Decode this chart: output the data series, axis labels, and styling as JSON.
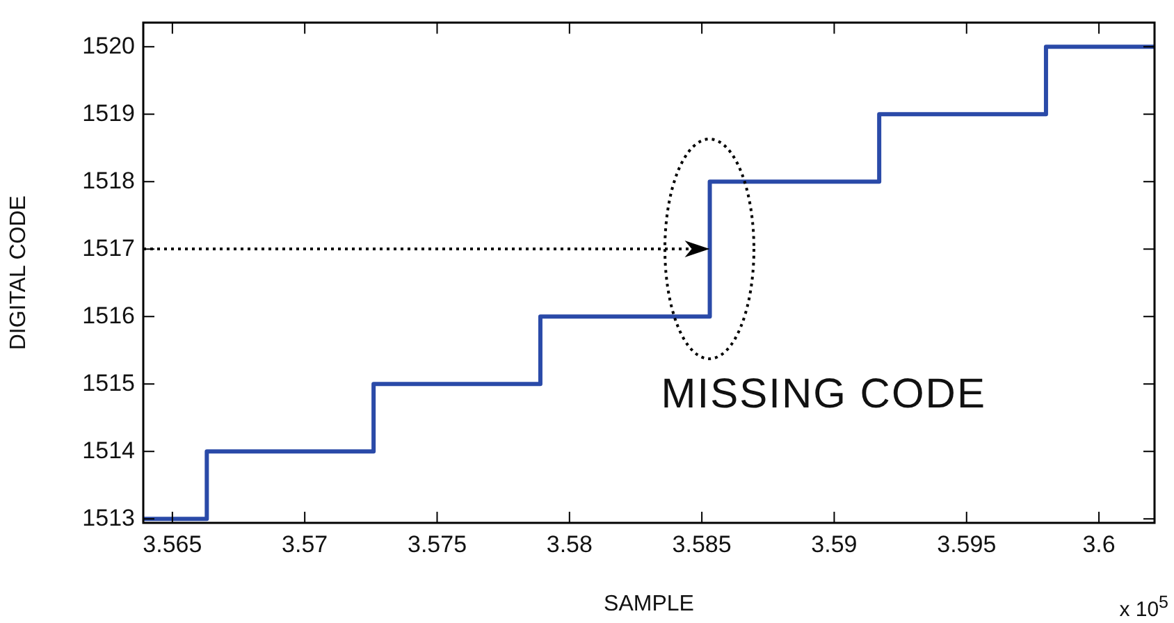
{
  "chart_data": {
    "type": "step",
    "xlabel": "SAMPLE",
    "ylabel": "DIGITAL CODE",
    "x": [
      3.5639,
      3.5663,
      3.5726,
      3.5789,
      3.5853,
      3.5917,
      3.598,
      3.6021
    ],
    "series": [
      {
        "color": "#2a4aa8",
        "values": [
          1513,
          1514,
          1515,
          1516,
          1518,
          1519,
          1520,
          1520
        ]
      }
    ],
    "xlim": [
      3.5639,
      3.6021
    ],
    "xticks": [
      3.565,
      3.57,
      3.575,
      3.58,
      3.585,
      3.59,
      3.595,
      3.6
    ],
    "ylim": [
      1512.94,
      1520.36
    ],
    "yticks": [
      1513,
      1514,
      1515,
      1516,
      1517,
      1518,
      1519,
      1520
    ],
    "grid": false,
    "legend": false,
    "marker": "none",
    "line_style": "solid",
    "annotations": [
      {
        "text": "MISSING CODE",
        "x": 3.5853,
        "y": 1517
      },
      "x 10$^{5}$"
    ]
  }
}
